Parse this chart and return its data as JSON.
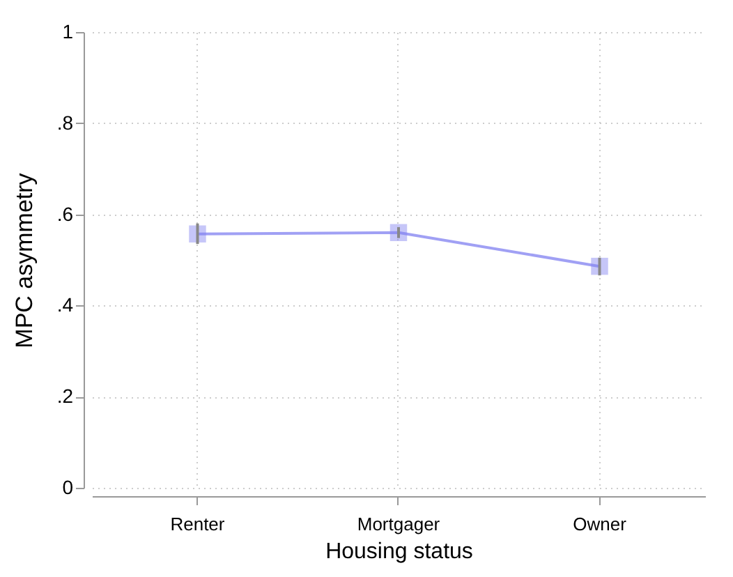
{
  "chart_data": {
    "type": "line",
    "xlabel": "Housing status",
    "ylabel": "MPC asymmetry",
    "categories": [
      "Renter",
      "Mortgager",
      "Owner"
    ],
    "series": [
      {
        "color": "#8080f0",
        "values": [
          0.557,
          0.56,
          0.486
        ],
        "errors": [
          [
            0.535,
            0.58
          ],
          [
            0.548,
            0.572
          ],
          [
            0.466,
            0.505
          ]
        ]
      }
    ],
    "ylim": [
      0,
      1
    ],
    "yticks": [
      0,
      {
        "value": 0.2,
        "label": ".2"
      },
      {
        "value": 0.4,
        "label": ".4"
      },
      {
        "value": 0.6,
        "label": ".6"
      },
      {
        "value": 0.8,
        "label": ".8"
      },
      1
    ],
    "grid": true,
    "marker": "square",
    "line_style": "solid"
  }
}
